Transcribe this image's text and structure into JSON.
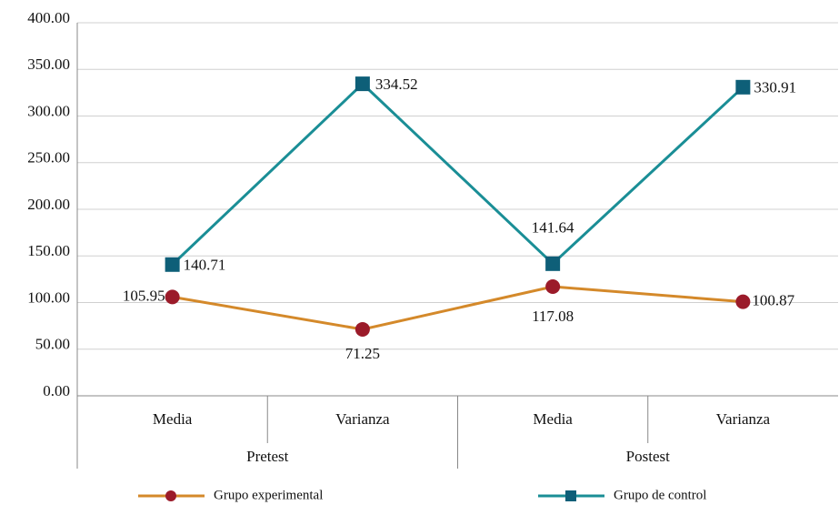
{
  "chart_data": {
    "type": "line",
    "categories": [
      "Media",
      "Varianza",
      "Media",
      "Varianza"
    ],
    "groups": [
      {
        "name": "Pretest",
        "span": 2
      },
      {
        "name": "Postest",
        "span": 2
      }
    ],
    "series": [
      {
        "name": "Grupo experimental",
        "color": "#d4892a",
        "marker_color": "#9b1b2a",
        "marker": "circle",
        "values": [
          105.95,
          71.25,
          117.08,
          100.87
        ]
      },
      {
        "name": "Grupo de control",
        "color": "#1a8e96",
        "marker_color": "#0e5f78",
        "marker": "square",
        "values": [
          140.71,
          334.52,
          141.64,
          330.91
        ]
      }
    ],
    "ylim": [
      0,
      400
    ],
    "yticks": [
      {
        "value": 0,
        "label": "0.00"
      },
      {
        "value": 50,
        "label": "50.00"
      },
      {
        "value": 100,
        "label": "100.00"
      },
      {
        "value": 150,
        "label": "150.00"
      },
      {
        "value": 200,
        "label": "200.00"
      },
      {
        "value": 250,
        "label": "250.00"
      },
      {
        "value": 300,
        "label": "300.00"
      },
      {
        "value": 350,
        "label": "350.00"
      },
      {
        "value": 400,
        "label": "400.00"
      }
    ],
    "grid": true
  }
}
